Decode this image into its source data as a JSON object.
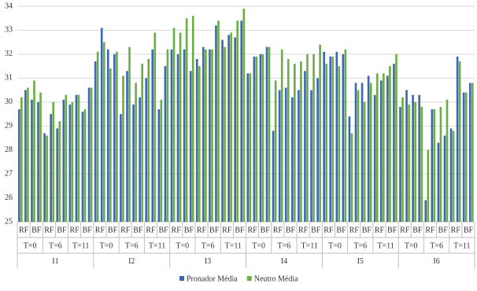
{
  "chart_data": {
    "type": "bar",
    "groups": [
      "I1",
      "I2",
      "I3",
      "I4",
      "I5",
      "I6"
    ],
    "subgroups": [
      "T=0",
      "T=6",
      "T=11",
      "T=0",
      "T=6",
      "T=11",
      "T=0",
      "T=6",
      "T=11",
      "T=0",
      "T=6",
      "T=11",
      "T=0",
      "T=6",
      "T=11",
      "T=0",
      "T=6",
      "T=11"
    ],
    "categories": [
      "RF",
      "BF",
      "RF",
      "BF",
      "RF",
      "BF",
      "RF",
      "BF",
      "RF",
      "BF",
      "RF",
      "BF",
      "RF",
      "BF",
      "RF",
      "BF",
      "RF",
      "BF",
      "RF",
      "BF",
      "RF",
      "BF",
      "RF",
      "BF",
      "RF",
      "BF",
      "RF",
      "BF",
      "RF",
      "BF",
      "RF",
      "BF",
      "RF",
      "BF",
      "RF",
      "BF"
    ],
    "series": [
      {
        "name": "Pronador Média",
        "color": "#3d67b1",
        "values": [
          [
            29.7,
            30.5
          ],
          [
            30.1,
            30.0
          ],
          [
            28.7,
            29.5
          ],
          [
            28.9,
            30.1
          ],
          [
            29.9,
            30.3
          ],
          [
            29.6,
            30.6
          ],
          [
            31.7,
            33.1
          ],
          [
            32.2,
            32.0
          ],
          [
            29.5,
            31.3
          ],
          [
            29.9,
            30.2
          ],
          [
            31.0,
            32.2
          ],
          [
            29.7,
            31.5
          ],
          [
            32.2,
            32.0
          ],
          [
            32.2,
            31.3
          ],
          [
            31.8,
            32.3
          ],
          [
            32.2,
            33.2
          ],
          [
            32.6,
            32.8
          ],
          [
            32.7,
            33.4
          ],
          [
            31.2,
            31.9
          ],
          [
            32.0,
            32.3
          ],
          [
            28.8,
            30.5
          ],
          [
            30.6,
            30.2
          ],
          [
            30.5,
            31.3
          ],
          [
            30.5,
            31.0
          ],
          [
            32.1,
            31.9
          ],
          [
            32.1,
            32.0
          ],
          [
            29.4,
            30.8
          ],
          [
            30.8,
            31.1
          ],
          [
            30.3,
            30.9
          ],
          [
            31.1,
            31.6
          ],
          [
            29.8,
            30.5
          ],
          [
            30.3,
            30.3
          ],
          [
            25.9,
            29.7
          ],
          [
            28.3,
            28.6
          ],
          [
            28.9,
            31.9
          ],
          [
            30.4,
            30.8
          ]
        ]
      },
      {
        "name": "Neutro Média",
        "color": "#6cae46",
        "values": [
          [
            30.2,
            30.6
          ],
          [
            30.9,
            30.4
          ],
          [
            28.6,
            30.0
          ],
          [
            29.2,
            30.3
          ],
          [
            30.0,
            30.3
          ],
          [
            29.7,
            30.6
          ],
          [
            32.1,
            32.5
          ],
          [
            31.4,
            32.1
          ],
          [
            31.1,
            32.3
          ],
          [
            30.8,
            31.6
          ],
          [
            31.8,
            32.9
          ],
          [
            30.1,
            32.2
          ],
          [
            33.1,
            32.9
          ],
          [
            33.5,
            33.6
          ],
          [
            31.5,
            32.2
          ],
          [
            32.2,
            33.4
          ],
          [
            32.3,
            32.9
          ],
          [
            33.4,
            33.9
          ],
          [
            31.2,
            31.9
          ],
          [
            32.0,
            32.3
          ],
          [
            30.9,
            32.2
          ],
          [
            31.8,
            31.6
          ],
          [
            31.7,
            32.0
          ],
          [
            32.0,
            32.4
          ],
          [
            31.6,
            31.9
          ],
          [
            31.5,
            32.2
          ],
          [
            28.7,
            30.5
          ],
          [
            30.0,
            30.8
          ],
          [
            31.2,
            31.2
          ],
          [
            31.5,
            32.0
          ],
          [
            30.2,
            29.9
          ],
          [
            30.0,
            29.8
          ],
          [
            28.0,
            29.7
          ],
          [
            29.8,
            30.1
          ],
          [
            28.8,
            31.7
          ],
          [
            30.4,
            30.8
          ]
        ]
      }
    ],
    "ylim": [
      25,
      34
    ],
    "yticks": [
      25,
      26,
      27,
      28,
      29,
      30,
      31,
      32,
      33,
      34
    ],
    "grid": true,
    "legend": "bottom"
  }
}
